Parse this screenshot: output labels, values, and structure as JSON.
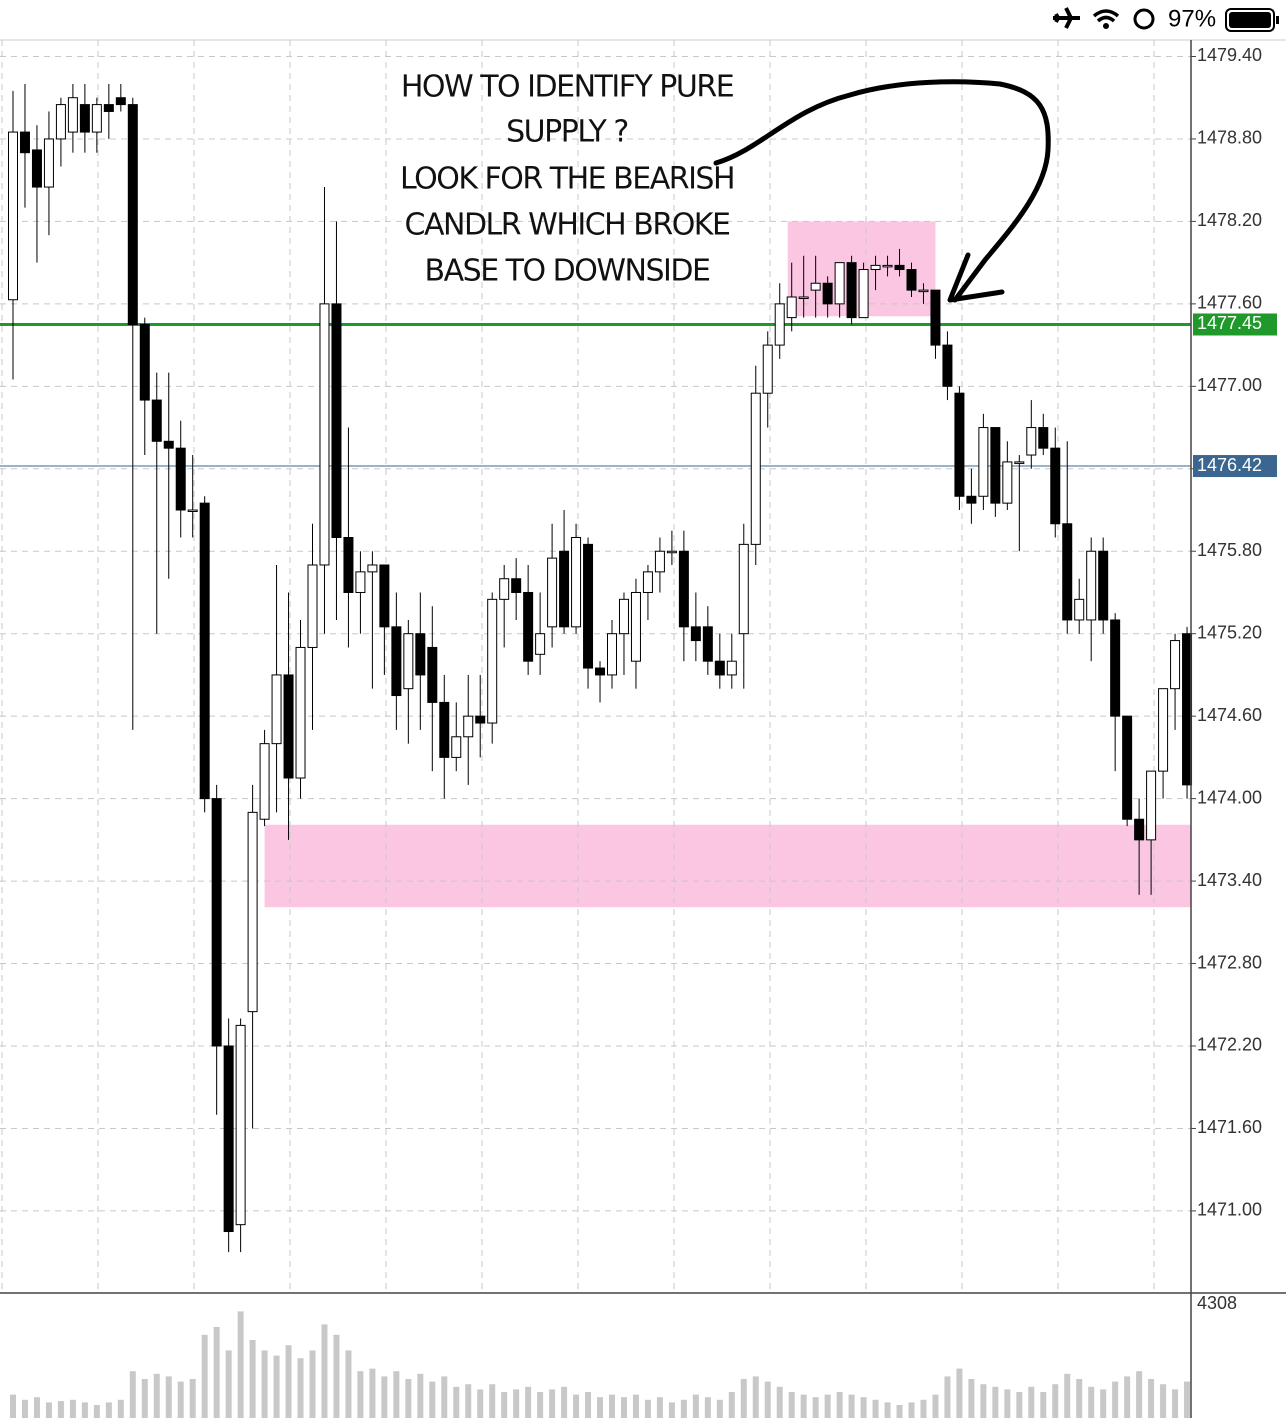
{
  "status_bar": {
    "battery": "97%"
  },
  "chart_data": {
    "type": "candlestick",
    "annotation": [
      "HOW TO IDENTIFY PURE",
      "SUPPLY ?",
      "LOOK FOR THE BEARISH",
      "CANDLR WHICH BROKE",
      "BASE TO DOWNSIDE"
    ],
    "open": [
      1477.63,
      1478.85,
      1478.72,
      1478.45,
      1478.8,
      1478.85,
      1479.05,
      1478.85,
      1479.05,
      1479.1,
      1479.05,
      1477.45,
      1476.9,
      1476.6,
      1476.55,
      1476.1,
      1476.15,
      1474.0,
      1472.2,
      1470.9,
      1472.45,
      1473.85,
      1474.4,
      1474.9,
      1474.15,
      1475.1,
      1475.7,
      1477.6,
      1475.9,
      1475.5,
      1475.65,
      1475.7,
      1475.25,
      1474.8,
      1475.2,
      1475.1,
      1474.7,
      1474.3,
      1474.45,
      1474.6,
      1474.55,
      1475.45,
      1475.6,
      1475.5,
      1475.05,
      1475.25,
      1475.8,
      1475.25,
      1475.85,
      1474.95,
      1474.9,
      1475.2,
      1475.0,
      1475.5,
      1475.65,
      1475.8,
      1475.8,
      1475.25,
      1475.25,
      1475.0,
      1474.9,
      1475.2,
      1475.85,
      1476.95,
      1477.3,
      1477.5,
      1477.65,
      1477.7,
      1477.75,
      1477.6,
      1477.9,
      1477.5,
      1477.85,
      1477.88,
      1477.88,
      1477.85,
      1477.7,
      1477.7,
      1477.3,
      1476.95,
      1476.2,
      1476.2,
      1476.7,
      1476.15,
      1476.45,
      1476.5,
      1476.7,
      1476.55,
      1476.0,
      1475.3,
      1475.3,
      1475.8,
      1475.3,
      1474.6,
      1473.85,
      1473.7,
      1474.2,
      1474.8,
      1475.2
    ],
    "high": [
      1479.15,
      1479.2,
      1478.9,
      1479.0,
      1479.1,
      1479.2,
      1479.2,
      1479.1,
      1479.2,
      1479.2,
      1479.1,
      1477.5,
      1477.1,
      1477.1,
      1476.75,
      1476.5,
      1476.2,
      1474.1,
      1472.4,
      1472.4,
      1474.1,
      1474.5,
      1475.7,
      1475.5,
      1475.3,
      1476.0,
      1478.45,
      1478.2,
      1476.7,
      1475.8,
      1475.8,
      1475.7,
      1475.5,
      1475.3,
      1475.5,
      1475.4,
      1474.9,
      1474.7,
      1474.9,
      1474.9,
      1475.5,
      1475.7,
      1475.75,
      1475.7,
      1475.5,
      1476.0,
      1476.1,
      1476.0,
      1475.9,
      1475.0,
      1475.3,
      1475.5,
      1475.6,
      1475.7,
      1475.9,
      1475.95,
      1475.95,
      1475.5,
      1475.4,
      1475.2,
      1475.2,
      1476.0,
      1477.15,
      1477.4,
      1477.75,
      1477.9,
      1477.95,
      1477.95,
      1477.8,
      1477.9,
      1477.95,
      1477.9,
      1477.95,
      1477.95,
      1478.0,
      1477.9,
      1477.75,
      1477.7,
      1477.4,
      1477.0,
      1476.4,
      1476.8,
      1476.7,
      1476.6,
      1476.5,
      1476.9,
      1476.8,
      1476.7,
      1476.6,
      1475.6,
      1475.9,
      1475.9,
      1475.35,
      1474.6,
      1474.0,
      1474.2,
      1474.8,
      1475.2,
      1475.25
    ],
    "low": [
      1477.05,
      1478.3,
      1477.9,
      1478.1,
      1478.6,
      1478.7,
      1478.7,
      1478.7,
      1478.8,
      1479.0,
      1474.5,
      1476.5,
      1475.2,
      1475.6,
      1475.9,
      1475.9,
      1473.9,
      1471.7,
      1470.7,
      1470.7,
      1471.6,
      1473.8,
      1473.9,
      1473.7,
      1474.0,
      1474.5,
      1475.2,
      1475.3,
      1475.1,
      1475.2,
      1474.8,
      1474.9,
      1474.5,
      1474.4,
      1474.5,
      1474.2,
      1474.0,
      1474.2,
      1474.1,
      1474.3,
      1474.4,
      1475.1,
      1475.3,
      1474.9,
      1474.9,
      1475.1,
      1475.2,
      1475.2,
      1474.8,
      1474.7,
      1474.8,
      1474.9,
      1474.8,
      1475.3,
      1475.5,
      1475.7,
      1475.0,
      1475.0,
      1474.9,
      1474.8,
      1474.8,
      1474.8,
      1475.7,
      1476.7,
      1477.2,
      1477.4,
      1477.5,
      1477.5,
      1477.5,
      1477.5,
      1477.45,
      1477.5,
      1477.7,
      1477.8,
      1477.8,
      1477.65,
      1477.6,
      1477.2,
      1476.9,
      1476.1,
      1476.0,
      1476.1,
      1476.05,
      1476.1,
      1475.8,
      1476.4,
      1476.5,
      1475.9,
      1475.2,
      1475.2,
      1475.0,
      1475.2,
      1474.2,
      1473.8,
      1473.3,
      1473.3,
      1474.0,
      1474.5,
      1474.0
    ],
    "close": [
      1478.85,
      1478.7,
      1478.45,
      1478.8,
      1479.05,
      1479.1,
      1478.85,
      1479.05,
      1479.0,
      1479.05,
      1477.45,
      1476.9,
      1476.6,
      1476.55,
      1476.1,
      1476.1,
      1474.0,
      1472.2,
      1470.85,
      1472.35,
      1473.9,
      1474.4,
      1474.9,
      1474.15,
      1475.1,
      1475.7,
      1477.6,
      1475.9,
      1475.5,
      1475.65,
      1475.7,
      1475.25,
      1474.75,
      1475.2,
      1474.9,
      1474.7,
      1474.3,
      1474.45,
      1474.6,
      1474.55,
      1475.45,
      1475.6,
      1475.5,
      1475.0,
      1475.2,
      1475.75,
      1475.25,
      1475.9,
      1474.95,
      1474.9,
      1475.2,
      1475.45,
      1475.5,
      1475.65,
      1475.8,
      1475.8,
      1475.25,
      1475.15,
      1475.0,
      1474.9,
      1475.0,
      1475.85,
      1476.95,
      1477.3,
      1477.6,
      1477.65,
      1477.65,
      1477.75,
      1477.6,
      1477.9,
      1477.5,
      1477.85,
      1477.88,
      1477.88,
      1477.85,
      1477.7,
      1477.7,
      1477.3,
      1477.0,
      1476.2,
      1476.15,
      1476.7,
      1476.15,
      1476.45,
      1476.45,
      1476.7,
      1476.55,
      1476.0,
      1475.3,
      1475.45,
      1475.8,
      1475.3,
      1474.6,
      1473.85,
      1473.7,
      1474.2,
      1474.8,
      1475.15,
      1474.1
    ],
    "ylim": [
      1470.41,
      1479.52
    ],
    "yticks": [
      {
        "value": 1479.4,
        "label": "1479.40"
      },
      {
        "value": 1478.8,
        "label": "1478.80"
      },
      {
        "value": 1478.2,
        "label": "1478.20"
      },
      {
        "value": 1477.6,
        "label": "1477.60"
      },
      {
        "value": 1477.0,
        "label": "1477.00"
      },
      {
        "value": 1476.4,
        "label": "1476.40"
      },
      {
        "value": 1475.8,
        "label": "1475.80"
      },
      {
        "value": 1475.2,
        "label": "1475.20"
      },
      {
        "value": 1474.6,
        "label": "1474.60"
      },
      {
        "value": 1474.0,
        "label": "1474.00"
      },
      {
        "value": 1473.4,
        "label": "1473.40"
      },
      {
        "value": 1472.8,
        "label": "1472.80"
      },
      {
        "value": 1472.2,
        "label": "1472.20"
      },
      {
        "value": 1471.6,
        "label": "1471.60"
      },
      {
        "value": 1471.0,
        "label": "1471.00"
      }
    ],
    "hlines": [
      {
        "value": 1477.45,
        "label": "1477.45",
        "color": "#1f9a2a"
      },
      {
        "value": 1476.42,
        "label": "1476.42",
        "color": "#3a6690"
      }
    ],
    "zones": [
      {
        "low": 1477.51,
        "high": 1478.2,
        "color": "#fbc6e2"
      },
      {
        "low": 1473.21,
        "high": 1473.81,
        "color": "#fbc6e2"
      }
    ],
    "grid": true,
    "volume": {
      "max_label": 4308,
      "values": [
        900,
        700,
        800,
        600,
        650,
        700,
        600,
        500,
        600,
        700,
        1800,
        1500,
        1700,
        1600,
        1400,
        1500,
        3200,
        3500,
        2600,
        4100,
        3000,
        2600,
        2400,
        2800,
        2300,
        2600,
        3600,
        3200,
        2600,
        1800,
        1900,
        1600,
        1800,
        1500,
        1700,
        1400,
        1600,
        1200,
        1300,
        1100,
        1300,
        1000,
        1100,
        1200,
        1000,
        1100,
        1200,
        900,
        1000,
        800,
        900,
        800,
        900,
        700,
        800,
        600,
        700,
        900,
        800,
        700,
        1000,
        1500,
        1600,
        1400,
        1200,
        1000,
        900,
        800,
        900,
        1000,
        900,
        800,
        700,
        600,
        500,
        600,
        700,
        900,
        1600,
        1900,
        1500,
        1300,
        1200,
        1100,
        1000,
        1200,
        1000,
        1300,
        1700,
        1500,
        1200,
        1100,
        1400,
        1600,
        1800,
        1500,
        1300,
        1100,
        1400
      ],
      "color": "#c8c8c8"
    }
  }
}
